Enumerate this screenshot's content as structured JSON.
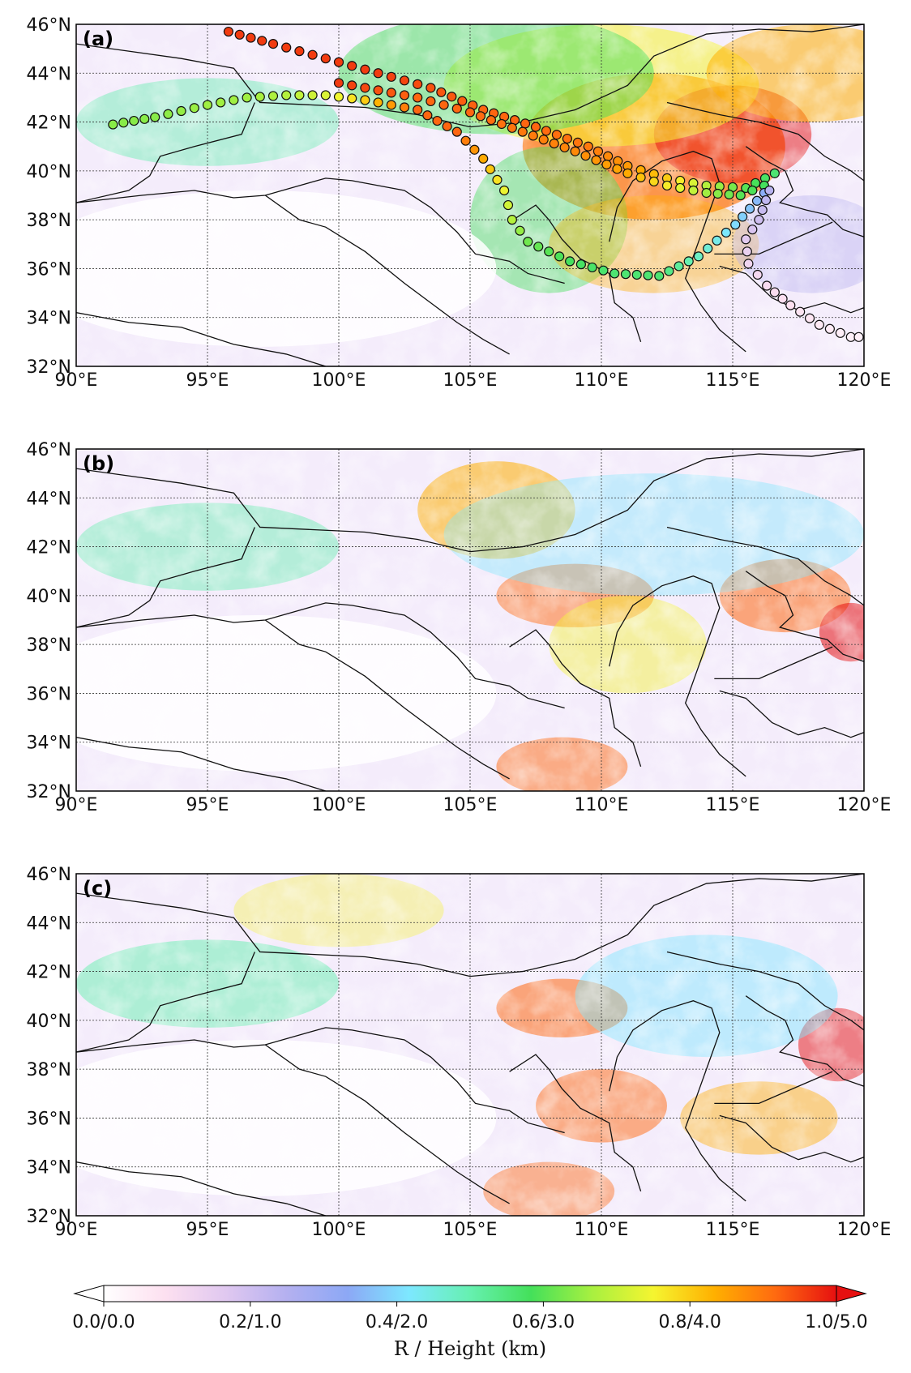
{
  "panels": [
    {
      "label": "(a)",
      "has_trajectories": true
    },
    {
      "label": "(b)",
      "has_trajectories": false
    },
    {
      "label": "(c)",
      "has_trajectories": false
    }
  ],
  "lon_ticks": [
    "90°E",
    "95°E",
    "100°E",
    "105°E",
    "110°E",
    "115°E",
    "120°E"
  ],
  "lat_ticks": [
    "46°N",
    "44°N",
    "42°N",
    "40°N",
    "38°N",
    "36°N",
    "34°N",
    "32°N"
  ],
  "map_extent": {
    "lon": [
      90,
      120
    ],
    "lat": [
      32,
      46
    ]
  },
  "colorbar": {
    "ticks": [
      "0.0/0.0",
      "0.2/1.0",
      "0.4/2.0",
      "0.6/3.0",
      "0.8/4.0",
      "1.0/5.0"
    ],
    "title": "R / Height (km)",
    "colors": [
      "#ffffff",
      "#fde0f0",
      "#e0c8f0",
      "#b4b0f0",
      "#8ca8f5",
      "#7de8ff",
      "#66f0b0",
      "#44e05a",
      "#a8f040",
      "#f5f530",
      "#ffb000",
      "#ff6a10",
      "#e61010"
    ]
  },
  "trajectories": [
    {
      "lonlat": [
        [
          95.8,
          45.7
        ],
        [
          97.5,
          45.2
        ],
        [
          99.5,
          44.6
        ],
        [
          101.5,
          44.0
        ],
        [
          103.5,
          43.4
        ],
        [
          105.5,
          42.5
        ],
        [
          107.5,
          41.8
        ],
        [
          109.5,
          41.0
        ],
        [
          111.0,
          40.2
        ],
        [
          112.5,
          39.7
        ],
        [
          114.0,
          39.4
        ],
        [
          115.5,
          39.3
        ],
        [
          116.6,
          39.9
        ]
      ],
      "heights_km": [
        4.8,
        4.8,
        4.8,
        4.8,
        4.7,
        4.6,
        4.6,
        4.5,
        4.3,
        4.0,
        3.4,
        3.0,
        2.8
      ]
    },
    {
      "lonlat": [
        [
          100.0,
          43.6
        ],
        [
          101.5,
          43.3
        ],
        [
          103.0,
          43.0
        ],
        [
          105.0,
          42.4
        ],
        [
          107.0,
          41.6
        ],
        [
          109.0,
          40.8
        ],
        [
          111.0,
          39.9
        ],
        [
          112.5,
          39.4
        ],
        [
          114.0,
          39.1
        ],
        [
          115.3,
          39.0
        ],
        [
          116.2,
          39.4
        ]
      ],
      "heights_km": [
        4.8,
        4.7,
        4.6,
        4.6,
        4.5,
        4.4,
        4.2,
        3.8,
        3.3,
        3.0,
        2.9
      ]
    },
    {
      "lonlat": [
        [
          91.4,
          41.9
        ],
        [
          93.0,
          42.2
        ],
        [
          95.0,
          42.7
        ],
        [
          96.5,
          43.0
        ],
        [
          98.0,
          43.1
        ],
        [
          99.5,
          43.1
        ],
        [
          101.0,
          42.9
        ],
        [
          103.0,
          42.5
        ],
        [
          104.5,
          41.6
        ],
        [
          105.5,
          40.5
        ],
        [
          106.3,
          39.2
        ],
        [
          106.6,
          38.0
        ],
        [
          107.2,
          37.1
        ],
        [
          108.8,
          36.3
        ],
        [
          110.5,
          35.8
        ],
        [
          112.2,
          35.7
        ],
        [
          113.7,
          36.5
        ],
        [
          115.1,
          37.8
        ],
        [
          116.2,
          39.1
        ]
      ],
      "heights_km": [
        3.2,
        3.2,
        3.3,
        3.3,
        3.4,
        3.6,
        4.0,
        4.6,
        4.6,
        4.2,
        3.7,
        3.4,
        3.1,
        2.9,
        2.8,
        2.8,
        2.4,
        2.0,
        1.7
      ]
    },
    {
      "lonlat": [
        [
          116.4,
          39.2
        ],
        [
          116.0,
          38.0
        ],
        [
          115.5,
          37.2
        ],
        [
          115.6,
          36.2
        ],
        [
          116.3,
          35.3
        ],
        [
          117.2,
          34.5
        ],
        [
          118.3,
          33.7
        ],
        [
          119.5,
          33.2
        ],
        [
          119.8,
          33.2
        ]
      ],
      "heights_km": [
        1.2,
        1.0,
        0.8,
        0.6,
        0.5,
        0.4,
        0.3,
        0.2,
        0.2
      ]
    }
  ]
}
